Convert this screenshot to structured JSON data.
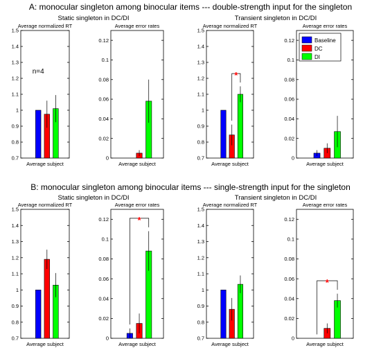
{
  "sections": [
    {
      "title": "A: monocular singleton among binocular items --- double-strength input for the singleton",
      "groups": [
        "Static singleton in DC/DI",
        "Transient singleton in DC/DI"
      ]
    },
    {
      "title": "B: monocular singleton among binocular items --- single-strength input for the singleton",
      "groups": [
        "Static singleton in DC/DI",
        "Transient singleton in DC/DI"
      ]
    }
  ],
  "legend": {
    "placement": "top-right of panel A4",
    "items": [
      {
        "label": "Baseline",
        "color": "#0000ff"
      },
      {
        "label": "DC",
        "color": "#ff0000"
      },
      {
        "label": "DI",
        "color": "#00ff00"
      }
    ]
  },
  "colors": {
    "baseline": "#0000ff",
    "dc": "#ff0000",
    "di": "#00ff00",
    "sig": "#ff0000"
  },
  "chart_data": [
    {
      "id": "A1",
      "type": "bar",
      "title": "Average normalized RT",
      "xlabel": "Average subject",
      "ylim": [
        0.7,
        1.5
      ],
      "yticks": [
        "0.7",
        "0.8",
        "0.9",
        "1",
        "1.1",
        "1.2",
        "1.3",
        "1.4",
        "1.5"
      ],
      "categories": [
        "Baseline",
        "DC",
        "DI"
      ],
      "values": [
        1.0,
        0.975,
        1.01
      ],
      "errors": [
        0.0,
        0.085,
        0.085
      ],
      "annotation": "n=4"
    },
    {
      "id": "A2",
      "type": "bar",
      "title": "Average error rates",
      "xlabel": "Average subject",
      "ylim": [
        0,
        0.13
      ],
      "yticks": [
        "0",
        "0.02",
        "0.04",
        "0.06",
        "0.08",
        "0.1",
        "0.12"
      ],
      "categories": [
        "Baseline",
        "DC",
        "DI"
      ],
      "values": [
        0.0,
        0.005,
        0.058
      ],
      "errors": [
        0.0,
        0.003,
        0.022
      ]
    },
    {
      "id": "A3",
      "type": "bar",
      "title": "Average normalized RT",
      "xlabel": "Average subject",
      "ylim": [
        0.7,
        1.5
      ],
      "yticks": [
        "0.7",
        "0.8",
        "0.9",
        "1",
        "1.1",
        "1.2",
        "1.3",
        "1.4",
        "1.5"
      ],
      "categories": [
        "Baseline",
        "DC",
        "DI"
      ],
      "values": [
        1.0,
        0.845,
        1.1
      ],
      "errors": [
        0.0,
        0.065,
        0.05
      ],
      "significance": {
        "between": [
          1,
          2
        ],
        "label": "*"
      }
    },
    {
      "id": "A4",
      "type": "bar",
      "title": "Average error rates",
      "xlabel": "Average subject",
      "ylim": [
        0,
        0.13
      ],
      "yticks": [
        "0",
        "0.02",
        "0.04",
        "0.06",
        "0.08",
        "0.1",
        "0.12"
      ],
      "categories": [
        "Baseline",
        "DC",
        "DI"
      ],
      "values": [
        0.005,
        0.01,
        0.027
      ],
      "errors": [
        0.003,
        0.005,
        0.016
      ],
      "legend": true
    },
    {
      "id": "B1",
      "type": "bar",
      "title": "Average normalized RT",
      "xlabel": "Average subject",
      "ylim": [
        0.7,
        1.5
      ],
      "yticks": [
        "0.7",
        "0.8",
        "0.9",
        "1",
        "1.1",
        "1.2",
        "1.3",
        "1.4",
        "1.5"
      ],
      "categories": [
        "Baseline",
        "DC",
        "DI"
      ],
      "values": [
        1.0,
        1.19,
        1.03
      ],
      "errors": [
        0.0,
        0.06,
        0.075
      ]
    },
    {
      "id": "B2",
      "type": "bar",
      "title": "Average error rates",
      "xlabel": "Average subject",
      "ylim": [
        0,
        0.13
      ],
      "yticks": [
        "0",
        "0.02",
        "0.04",
        "0.06",
        "0.08",
        "0.1",
        "0.12"
      ],
      "categories": [
        "Baseline",
        "DC",
        "DI"
      ],
      "values": [
        0.005,
        0.015,
        0.088
      ],
      "errors": [
        0.005,
        0.01,
        0.02
      ],
      "significance": {
        "between": [
          0,
          2
        ],
        "label": "*"
      }
    },
    {
      "id": "B3",
      "type": "bar",
      "title": "Average normalized RT",
      "xlabel": "Average subject",
      "ylim": [
        0.7,
        1.5
      ],
      "yticks": [
        "0.7",
        "0.8",
        "0.9",
        "1",
        "1.1",
        "1.2",
        "1.3",
        "1.4",
        "1.5"
      ],
      "categories": [
        "Baseline",
        "DC",
        "DI"
      ],
      "values": [
        1.0,
        0.88,
        1.035
      ],
      "errors": [
        0.0,
        0.07,
        0.055
      ]
    },
    {
      "id": "B4",
      "type": "bar",
      "title": "Average error rates",
      "xlabel": "Average subject",
      "ylim": [
        0,
        0.13
      ],
      "yticks": [
        "0",
        "0.02",
        "0.04",
        "0.06",
        "0.08",
        "0.1",
        "0.12"
      ],
      "categories": [
        "Baseline",
        "DC",
        "DI"
      ],
      "values": [
        0.0,
        0.01,
        0.038
      ],
      "errors": [
        0.0,
        0.005,
        0.007
      ],
      "significance": {
        "between": [
          0,
          2
        ],
        "label": "*"
      }
    }
  ]
}
